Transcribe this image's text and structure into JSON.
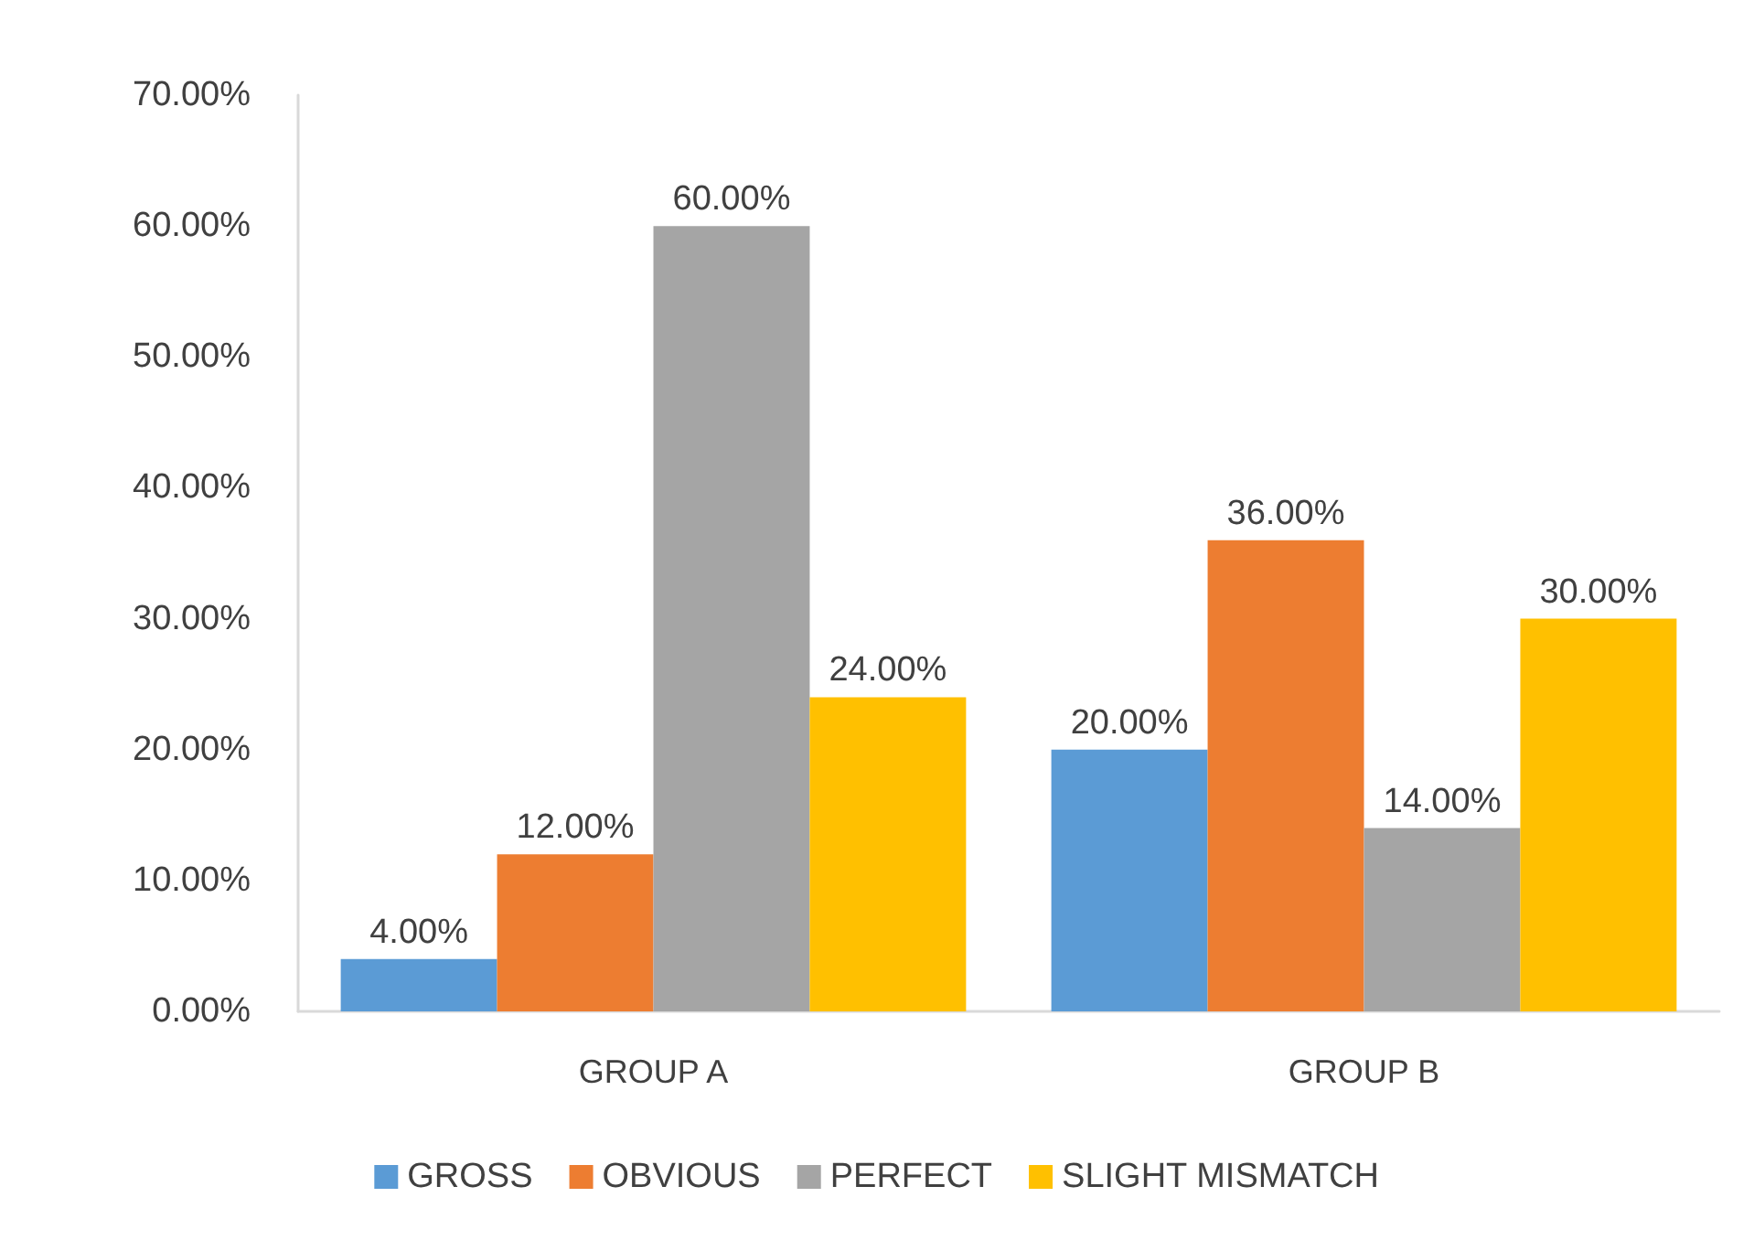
{
  "chart_data": {
    "type": "bar",
    "categories": [
      "GROUP A",
      "GROUP B"
    ],
    "series": [
      {
        "name": "GROSS",
        "color": "#5b9bd5",
        "values": [
          4,
          20
        ],
        "value_labels": [
          "4.00%",
          "20.00%"
        ]
      },
      {
        "name": "OBVIOUS",
        "color": "#ed7d31",
        "values": [
          12,
          36
        ],
        "value_labels": [
          "12.00%",
          "36.00%"
        ]
      },
      {
        "name": "PERFECT",
        "color": "#a5a5a5",
        "values": [
          60,
          14
        ],
        "value_labels": [
          "60.00%",
          "14.00%"
        ]
      },
      {
        "name": "SLIGHT MISMATCH",
        "color": "#ffc000",
        "values": [
          24,
          30
        ],
        "value_labels": [
          "24.00%",
          "30.00%"
        ]
      }
    ],
    "ylim": [
      0,
      70
    ],
    "yticks": [
      {
        "value": 0,
        "label": "0.00%"
      },
      {
        "value": 10,
        "label": "10.00%"
      },
      {
        "value": 20,
        "label": "20.00%"
      },
      {
        "value": 30,
        "label": "30.00%"
      },
      {
        "value": 40,
        "label": "40.00%"
      },
      {
        "value": 50,
        "label": "50.00%"
      },
      {
        "value": 60,
        "label": "60.00%"
      },
      {
        "value": 70,
        "label": "70.00%"
      }
    ],
    "grid": false,
    "legend": "bottom"
  }
}
